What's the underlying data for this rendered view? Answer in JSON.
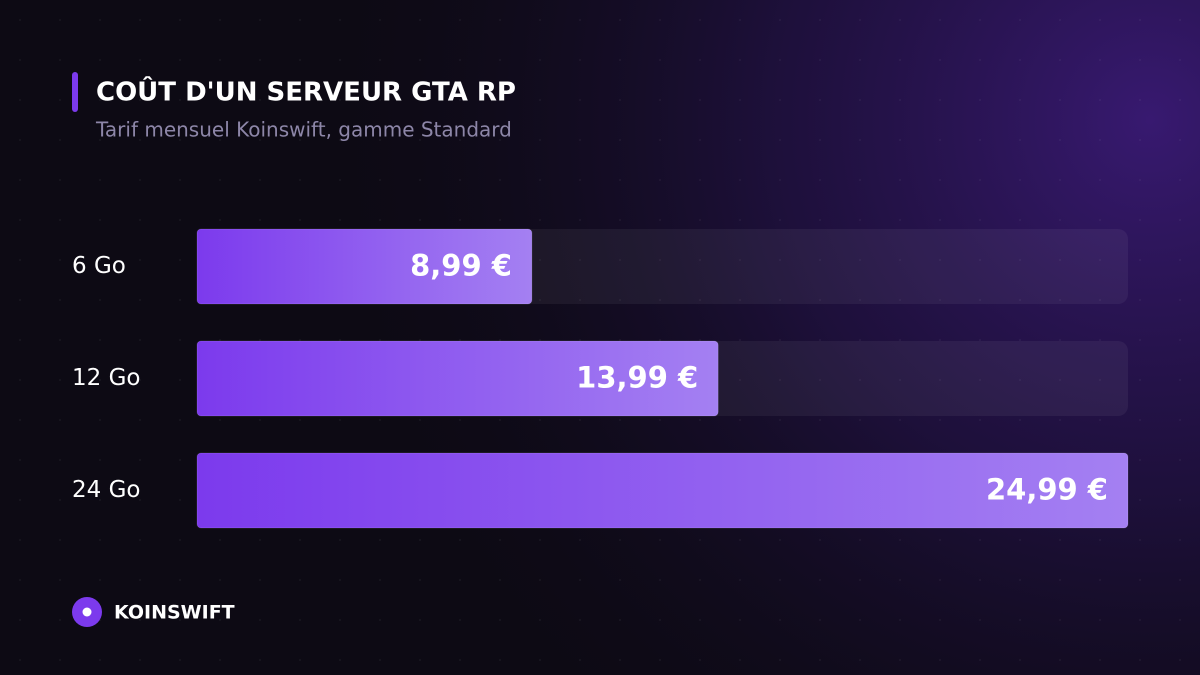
{
  "chart_data": {
    "type": "bar",
    "orientation": "horizontal",
    "title": "COÛT D'UN SERVEUR GTA RP",
    "subtitle": "Tarif mensuel Koinswift, gamme Standard",
    "categories": [
      "6 Go",
      "12 Go",
      "24 Go"
    ],
    "values": [
      8.99,
      13.99,
      24.99
    ],
    "value_labels": [
      "8,99 €",
      "13,99 €",
      "24,99 €"
    ],
    "color": "#7c3aed"
  },
  "footer": {
    "brand": "KOINSWIFT"
  }
}
